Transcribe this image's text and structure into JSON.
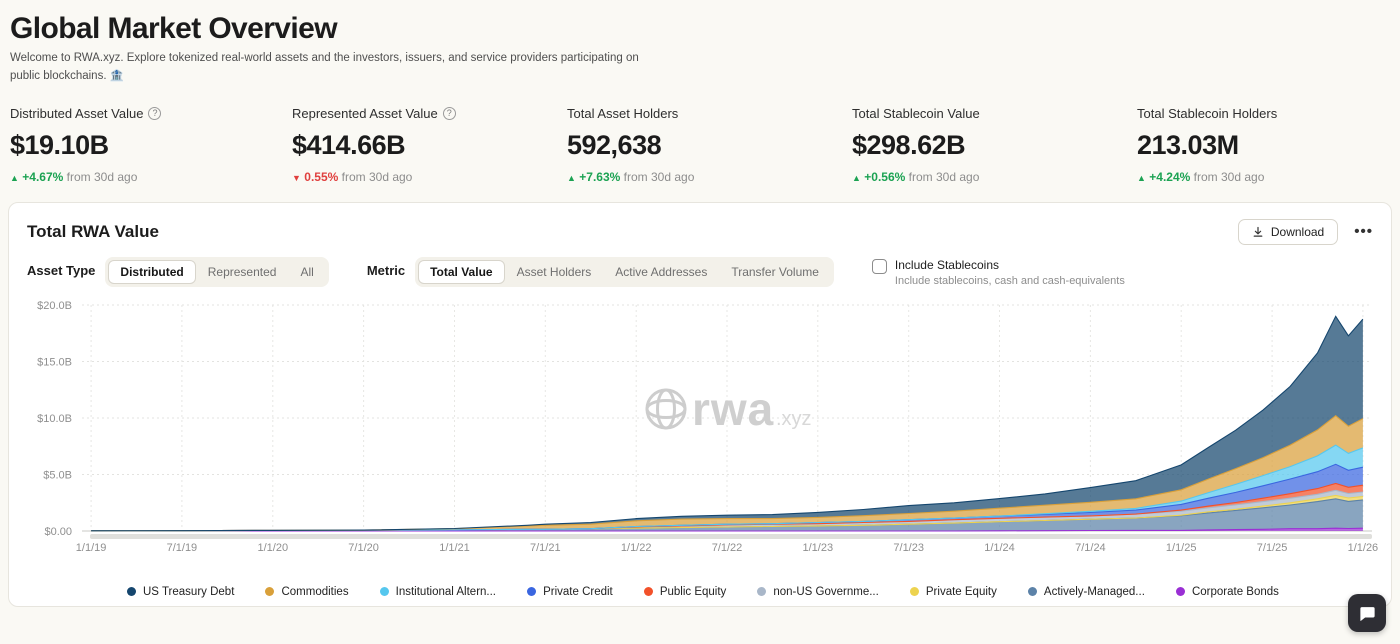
{
  "page": {
    "title": "Global Market Overview",
    "subtitle_line1": "Welcome to RWA.xyz. Explore tokenized real-world assets and the investors, issuers, and service providers participating on",
    "subtitle_line2": "public blockchains. 🏦"
  },
  "stats": [
    {
      "label": "Distributed Asset Value",
      "has_info": true,
      "value": "$19.10B",
      "delta_arrow": "▲",
      "delta": "+4.67%",
      "delta_dir": "up",
      "delta_suffix": "from 30d ago"
    },
    {
      "label": "Represented Asset Value",
      "has_info": true,
      "value": "$414.66B",
      "delta_arrow": "▼",
      "delta": "0.55%",
      "delta_dir": "down",
      "delta_suffix": "from 30d ago"
    },
    {
      "label": "Total Asset Holders",
      "has_info": false,
      "value": "592,638",
      "delta_arrow": "▲",
      "delta": "+7.63%",
      "delta_dir": "up",
      "delta_suffix": "from 30d ago"
    },
    {
      "label": "Total Stablecoin Value",
      "has_info": false,
      "value": "$298.62B",
      "delta_arrow": "▲",
      "delta": "+0.56%",
      "delta_dir": "up",
      "delta_suffix": "from 30d ago"
    },
    {
      "label": "Total Stablecoin Holders",
      "has_info": false,
      "value": "213.03M",
      "delta_arrow": "▲",
      "delta": "+4.24%",
      "delta_dir": "up",
      "delta_suffix": "from 30d ago"
    }
  ],
  "card": {
    "title": "Total RWA Value",
    "download_label": "Download",
    "menu_label": "•••",
    "asset_type": {
      "label": "Asset Type",
      "options": [
        "Distributed",
        "Represented",
        "All"
      ],
      "selected": "Distributed"
    },
    "metric": {
      "label": "Metric",
      "options": [
        "Total Value",
        "Asset Holders",
        "Active Addresses",
        "Transfer Volume"
      ],
      "selected": "Total Value"
    },
    "stablecoin_toggle": {
      "label": "Include Stablecoins",
      "sublabel": "Include stablecoins, cash and cash-equivalents",
      "checked": false
    }
  },
  "chart_data": {
    "type": "area",
    "stacked": true,
    "title": "Total RWA Value",
    "xlabel": "",
    "ylabel": "",
    "grid": true,
    "legend_position": "bottom",
    "watermark": "rwa.xyz",
    "xlim": [
      2018.95,
      2026.05
    ],
    "ylim": [
      0,
      20
    ],
    "y_ticks": [
      {
        "v": 0,
        "label": "$0.00"
      },
      {
        "v": 5,
        "label": "$5.0B"
      },
      {
        "v": 10,
        "label": "$10.0B"
      },
      {
        "v": 15,
        "label": "$15.0B"
      },
      {
        "v": 20,
        "label": "$20.0B"
      }
    ],
    "x_ticks": [
      {
        "pos": 2019.0,
        "label": "1/1/19"
      },
      {
        "pos": 2019.5,
        "label": "7/1/19"
      },
      {
        "pos": 2020.0,
        "label": "1/1/20"
      },
      {
        "pos": 2020.5,
        "label": "7/1/20"
      },
      {
        "pos": 2021.0,
        "label": "1/1/21"
      },
      {
        "pos": 2021.5,
        "label": "7/1/21"
      },
      {
        "pos": 2022.0,
        "label": "1/1/22"
      },
      {
        "pos": 2022.5,
        "label": "7/1/22"
      },
      {
        "pos": 2023.0,
        "label": "1/1/23"
      },
      {
        "pos": 2023.5,
        "label": "7/1/23"
      },
      {
        "pos": 2024.0,
        "label": "1/1/24"
      },
      {
        "pos": 2024.5,
        "label": "7/1/24"
      },
      {
        "pos": 2025.0,
        "label": "1/1/25"
      },
      {
        "pos": 2025.5,
        "label": "7/1/25"
      },
      {
        "pos": 2026.0,
        "label": "1/1/26"
      }
    ],
    "x": [
      2019.0,
      2019.5,
      2020.0,
      2020.5,
      2021.0,
      2021.4,
      2021.5,
      2021.75,
      2022.0,
      2022.25,
      2022.5,
      2022.75,
      2023.0,
      2023.25,
      2023.5,
      2023.75,
      2024.0,
      2024.25,
      2024.5,
      2024.75,
      2025.0,
      2025.15,
      2025.3,
      2025.45,
      2025.6,
      2025.75,
      2025.85,
      2025.92,
      2026.0
    ],
    "units": "USD billions",
    "series": [
      {
        "name": "US Treasury Debt",
        "color": "#15466e",
        "values": [
          0,
          0,
          0,
          0,
          0.02,
          0.05,
          0.1,
          0.15,
          0.2,
          0.25,
          0.3,
          0.35,
          0.45,
          0.55,
          0.7,
          0.75,
          0.85,
          1.0,
          1.3,
          1.6,
          2.2,
          2.8,
          3.4,
          4.2,
          5.2,
          6.8,
          8.8,
          8.0,
          8.8
        ]
      },
      {
        "name": "Commodities",
        "color": "#d9a03a",
        "values": [
          0,
          0,
          0,
          0,
          0.1,
          0.3,
          0.35,
          0.4,
          0.5,
          0.55,
          0.5,
          0.45,
          0.45,
          0.5,
          0.55,
          0.6,
          0.7,
          0.75,
          0.8,
          0.85,
          1.0,
          1.2,
          1.4,
          1.6,
          1.9,
          2.3,
          2.6,
          2.4,
          2.6
        ]
      },
      {
        "name": "Institutional Altern...",
        "color": "#56c7ee",
        "values": [
          0,
          0,
          0,
          0,
          0,
          0,
          0,
          0,
          0,
          0,
          0,
          0,
          0,
          0,
          0,
          0,
          0,
          0.05,
          0.1,
          0.15,
          0.3,
          0.5,
          0.7,
          0.9,
          1.1,
          1.4,
          1.7,
          1.5,
          1.7
        ]
      },
      {
        "name": "Private Credit",
        "color": "#3a66e0",
        "values": [
          0,
          0,
          0,
          0,
          0,
          0,
          0,
          0,
          0.05,
          0.05,
          0.05,
          0.05,
          0.1,
          0.1,
          0.15,
          0.15,
          0.2,
          0.25,
          0.3,
          0.35,
          0.5,
          0.7,
          0.9,
          1.1,
          1.3,
          1.5,
          1.7,
          1.5,
          1.6
        ]
      },
      {
        "name": "Public Equity",
        "color": "#f2512a",
        "values": [
          0,
          0,
          0,
          0,
          0,
          0,
          0,
          0,
          0,
          0,
          0,
          0,
          0,
          0,
          0,
          0,
          0,
          0,
          0,
          0,
          0.1,
          0.15,
          0.2,
          0.3,
          0.4,
          0.5,
          0.6,
          0.55,
          0.6
        ]
      },
      {
        "name": "non-US Governme...",
        "color": "#a9b7c9",
        "values": [
          0,
          0,
          0,
          0,
          0,
          0,
          0,
          0,
          0.1,
          0.15,
          0.2,
          0.2,
          0.2,
          0.25,
          0.25,
          0.3,
          0.3,
          0.3,
          0.3,
          0.35,
          0.35,
          0.35,
          0.4,
          0.4,
          0.4,
          0.4,
          0.45,
          0.4,
          0.4
        ]
      },
      {
        "name": "Private Equity",
        "color": "#edd34f",
        "values": [
          0,
          0,
          0,
          0,
          0,
          0,
          0,
          0,
          0,
          0,
          0,
          0,
          0,
          0,
          0,
          0,
          0,
          0,
          0,
          0,
          0.05,
          0.1,
          0.1,
          0.15,
          0.2,
          0.25,
          0.3,
          0.3,
          0.3
        ]
      },
      {
        "name": "Actively-Managed...",
        "color": "#5c82a8",
        "values": [
          0.02,
          0.03,
          0.05,
          0.08,
          0.1,
          0.15,
          0.15,
          0.2,
          0.25,
          0.3,
          0.35,
          0.4,
          0.45,
          0.5,
          0.6,
          0.7,
          0.8,
          0.9,
          1.0,
          1.1,
          1.3,
          1.5,
          1.7,
          1.9,
          2.1,
          2.4,
          2.6,
          2.4,
          2.5
        ]
      },
      {
        "name": "Corporate Bonds",
        "color": "#9a2fd4",
        "values": [
          0,
          0,
          0,
          0,
          0,
          0,
          0,
          0,
          0,
          0,
          0,
          0,
          0,
          0,
          0,
          0,
          0.02,
          0.03,
          0.04,
          0.05,
          0.05,
          0.1,
          0.12,
          0.15,
          0.2,
          0.2,
          0.25,
          0.22,
          0.25
        ]
      }
    ]
  }
}
